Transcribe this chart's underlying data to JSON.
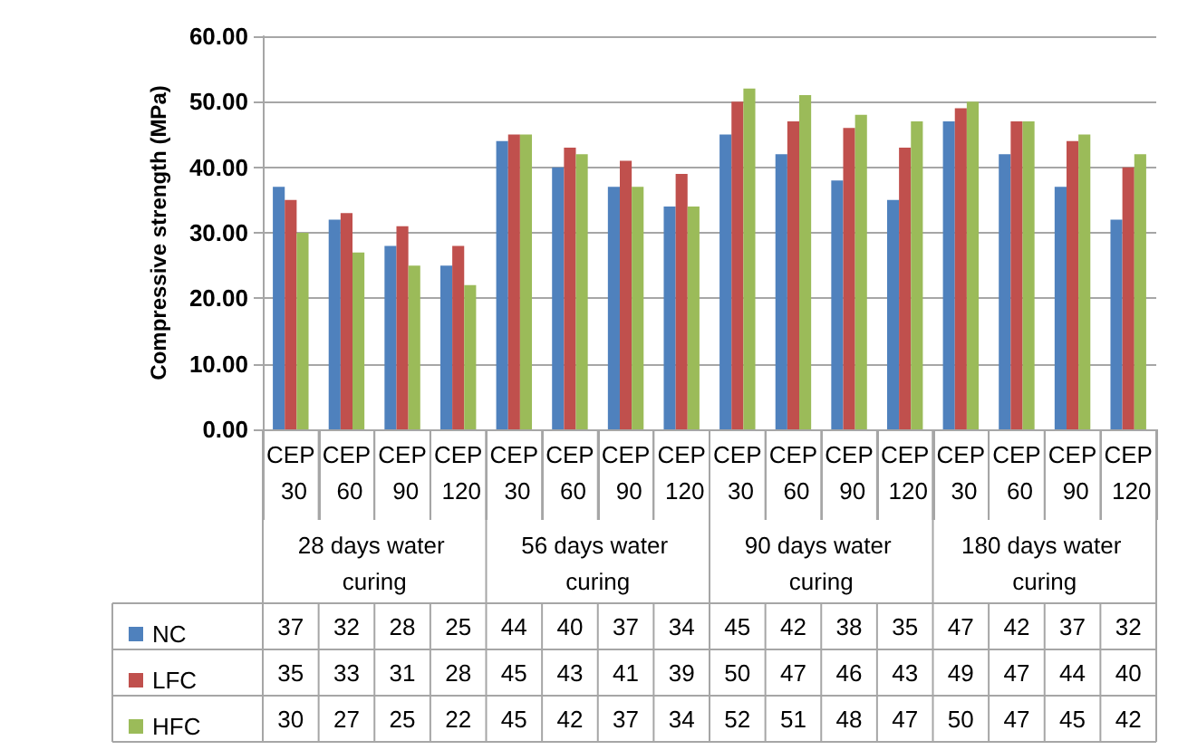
{
  "chart_data": {
    "type": "bar",
    "ylabel": "Compressive strength (MPa)",
    "categories": [
      "CEP 30",
      "CEP 60",
      "CEP 90",
      "CEP 120",
      "CEP 30",
      "CEP 60",
      "CEP 90",
      "CEP 120",
      "CEP 30",
      "CEP 60",
      "CEP 90",
      "CEP 120",
      "CEP 30",
      "CEP 60",
      "CEP 90",
      "CEP 120"
    ],
    "annotations": [
      "28 days water curing",
      "56 days water curing",
      "90 days water curing",
      "180 days water curing"
    ],
    "series": [
      {
        "name": "NC",
        "color": "#4f81bd",
        "values": [
          37,
          32,
          28,
          25,
          44,
          40,
          37,
          34,
          45,
          42,
          38,
          35,
          47,
          42,
          37,
          32
        ]
      },
      {
        "name": "LFC",
        "color": "#c0504d",
        "values": [
          35,
          33,
          31,
          28,
          45,
          43,
          41,
          39,
          50,
          47,
          46,
          43,
          49,
          47,
          44,
          40
        ]
      },
      {
        "name": "HFC",
        "color": "#9bbb59",
        "values": [
          30,
          27,
          25,
          22,
          45,
          42,
          37,
          34,
          52,
          51,
          48,
          47,
          50,
          47,
          45,
          42
        ]
      }
    ],
    "ylim": [
      0,
      60
    ],
    "yticks": [
      {
        "value": 0,
        "label": "0.00"
      },
      {
        "value": 10,
        "label": "10.00"
      },
      {
        "value": 20,
        "label": "20.00"
      },
      {
        "value": 30,
        "label": "30.00"
      },
      {
        "value": 40,
        "label": "40.00"
      },
      {
        "value": 50,
        "label": "50.00"
      },
      {
        "value": 60,
        "label": "60.00"
      }
    ],
    "grid": "y",
    "legend": "bottom left",
    "data_labels": true
  }
}
